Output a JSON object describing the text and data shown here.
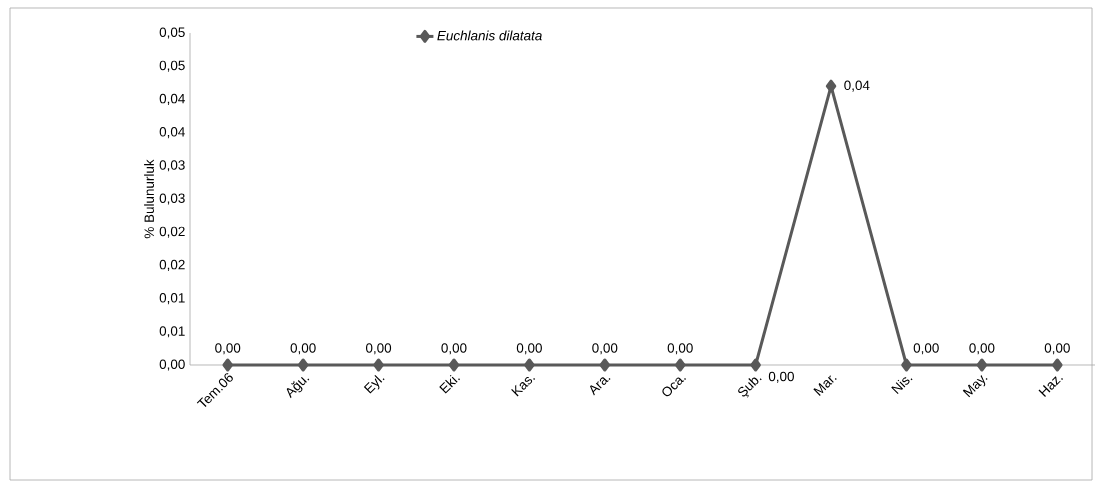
{
  "chart_data": {
    "type": "line",
    "ylabel": "% Bulunurluk",
    "categories": [
      "Tem.06",
      "Ağu.",
      "Eyl.",
      "Eki.",
      "Kas.",
      "Ara.",
      "Oca.",
      "Şub.",
      "Mar.",
      "Nis.",
      "May.",
      "Haz."
    ],
    "series": [
      {
        "name": "Euchlanis dilatata",
        "color": "#595959",
        "values": [
          0,
          0,
          0,
          0,
          0,
          0,
          0,
          0,
          0.042,
          0,
          0,
          0
        ],
        "value_labels": [
          "0,00",
          "0,00",
          "0,00",
          "0,00",
          "0,00",
          "0,00",
          "0,00",
          "0,00",
          "0,04",
          "0,00",
          "0,00",
          "0,00"
        ]
      }
    ],
    "ylim": [
      0,
      0.05
    ],
    "yticks": [
      {
        "value": 0,
        "label": "0,00"
      },
      {
        "value": 0.005,
        "label": "0,01"
      },
      {
        "value": 0.01,
        "label": "0,01"
      },
      {
        "value": 0.015,
        "label": "0,02"
      },
      {
        "value": 0.02,
        "label": "0,02"
      },
      {
        "value": 0.025,
        "label": "0,03"
      },
      {
        "value": 0.03,
        "label": "0,03"
      },
      {
        "value": 0.035,
        "label": "0,04"
      },
      {
        "value": 0.04,
        "label": "0,04"
      },
      {
        "value": 0.045,
        "label": "0,05"
      },
      {
        "value": 0.05,
        "label": "0,05"
      }
    ],
    "grid": false,
    "legend": "top",
    "marker": "diamond",
    "line_style": "solid"
  }
}
